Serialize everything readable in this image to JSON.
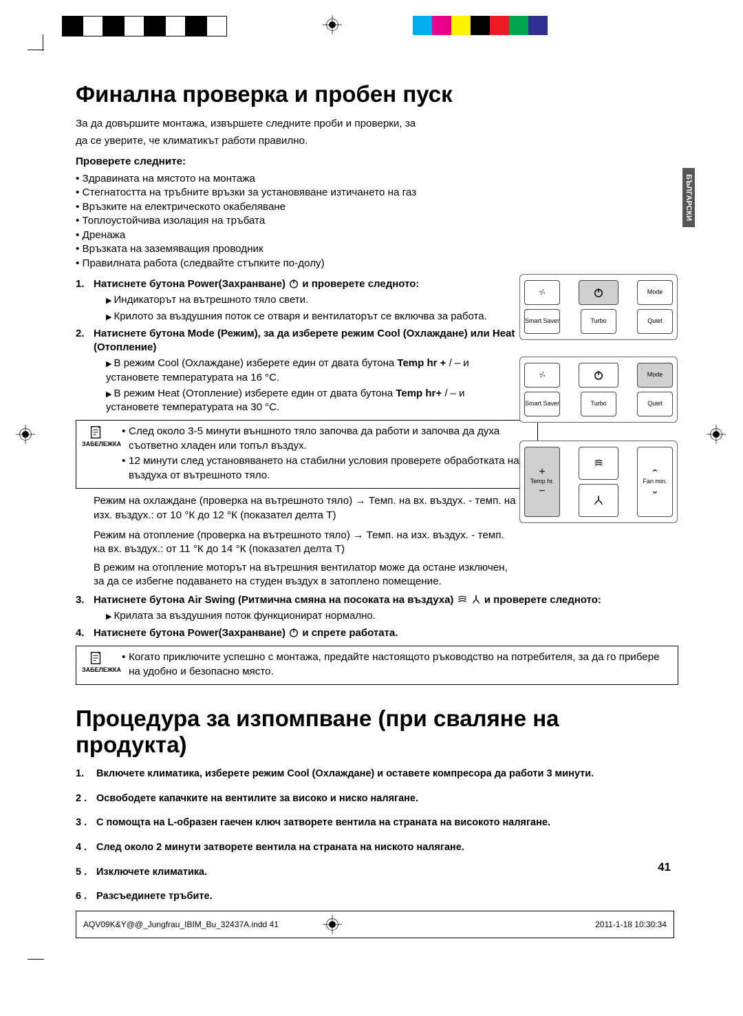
{
  "colorbars": {
    "left": [
      "#000000",
      "#ffffff",
      "#000000",
      "#ffffff",
      "#000000",
      "#ffffff",
      "#000000",
      "#ffffff"
    ],
    "right": [
      "#00aeef",
      "#ec008c",
      "#fff200",
      "#000000",
      "#ed1c24",
      "#00a651",
      "#2e3192",
      "#ffffff"
    ]
  },
  "side_tab": "БЪЛГАРСКИ",
  "h1_a": "Финална проверка и пробен пуск",
  "intro_a1": "За да довършите монтажа, извършете следните проби и проверки, за",
  "intro_a2": "да се уверите, че климатикът работи правилно.",
  "check_header": "Проверете следните:",
  "checks": [
    "Здравината на мястото на монтажа",
    "Стегнатостта на тръбните връзки за установяване изтичането на газ",
    "Връзките на електрическото окабеляване",
    "Топлоустойчива изолация на тръбата",
    "Дренажа",
    "Връзката на заземяващия проводник",
    "Правилната работа (следвайте стъпките по-долу)"
  ],
  "step1_head_a": "Натиснете бутона Power(Захранване) ",
  "step1_head_b": " и проверете следното:",
  "step1_sub1": "Индикаторът на вътрешното тяло свети.",
  "step1_sub2": "Крилото за въздушния поток се отваря и вентилаторът се включва за работа.",
  "step2_head": "Натиснете бутона Mode (Режим), за да изберете режим Cool (Охлаждане) или Heat (Отопление)",
  "step2_sub1_a": "В режим Cool (Охлаждане) изберете един от двата бутона ",
  "step2_sub1_b": "Temp hr +",
  "step2_sub1_c": " / – и установете температурата на 16 °C.",
  "step2_sub2_a": "В режим Heat (Отопление) изберете един от двата бутона ",
  "step2_sub2_b": "Temp hr+",
  "step2_sub2_c": " / – и установете температурата на 30 °C.",
  "note1_label": "ЗАБЕЛЕЖКА",
  "note1_li1": "След около 3-5 минути външното тяло започва да работи и започва да духа съответно хладен или топъл въздух.",
  "note1_li2": "12 минути след установяването на стабилни условия проверете обработката на въздуха от вътрешното тяло.",
  "para_cool": "Режим на охлаждане (проверка на вътрешното тяло) → Темп. на вх. въздух. - темп. на изх. въздух.:  от 10 °К до 12 °К (показател делта Т)",
  "para_heat": "Режим на отопление (проверка на вътрешното тяло) → Темп. на изх. въздух. - темп. на вх. въздух.:  от 11 °К до 14 °К (показател делта Т)",
  "para_fan": "В режим на отопление моторът на вътрешния вентилатор може да остане изключен, за да се избегне подаването на студен въздух в затоплено помещение.",
  "step3_head_a": "Натиснете бутона Air Swing (Ритмична смяна на посоката на въздуха) ",
  "step3_head_b": " и проверете следното:",
  "step3_sub1": "Крилата за въздушния поток функционират нормално.",
  "step4_head_a": "Натиснете бутона Power(Захранване) ",
  "step4_head_b": " и спрете работата.",
  "note2_label": "ЗАБЕЛЕЖКА",
  "note2_text": "Когато приключите успешно с монтажа, предайте настоящото ръководство на потребителя, за да го прибере на удобно и безопасно място.",
  "h1_b": "Процедура за изпомпване (при сваляне на продукта)",
  "p2": [
    "Включете климатика, изберете режим Cool (Охлаждане) и оставете компресора да работи 3 минути.",
    "Освободете капачките на вентилите за високо и ниско налягане.",
    "С помощта на L-образен гаечен ключ затворете вентила на страната на високото налягане.",
    "След около 2 минути затворете вентила на страната на ниското налягане.",
    "Изключете климатика.",
    "Разсъединете тръбите."
  ],
  "page_number": "41",
  "footer_left": "AQV09K&Y@@_Jungfrau_IBIM_Bu_32437A.indd   41",
  "footer_right": "2011-1-18   10:30:34",
  "remote": {
    "mode": "Mode",
    "smart": "Smart Saver",
    "turbo": "Turbo",
    "quiet": "Quiet",
    "temp": "Temp hr.",
    "fan": "Fan min."
  }
}
